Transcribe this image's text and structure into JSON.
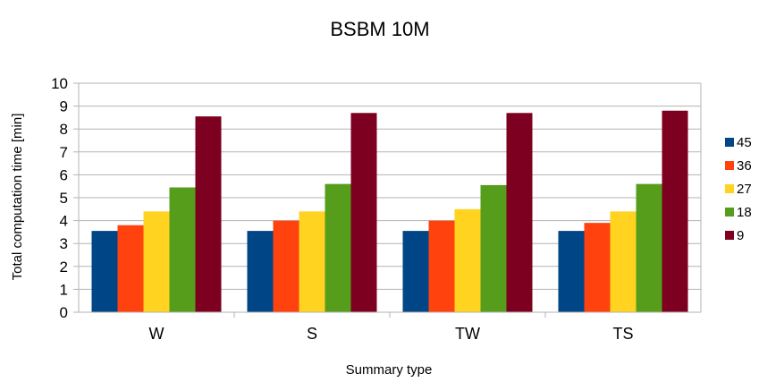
{
  "chart_data": {
    "type": "bar",
    "title": "BSBM 10M",
    "xlabel": "Summary type",
    "ylabel": "Total computation time [min]",
    "ylim": [
      0,
      10
    ],
    "yticks": [
      0,
      1,
      2,
      3,
      4,
      5,
      6,
      7,
      8,
      9,
      10
    ],
    "categories": [
      "W",
      "S",
      "TW",
      "TS"
    ],
    "series": [
      {
        "name": "45",
        "color": "#004586",
        "values": [
          3.55,
          3.55,
          3.55,
          3.55
        ]
      },
      {
        "name": "36",
        "color": "#ff420e",
        "values": [
          3.8,
          4.0,
          4.0,
          3.9
        ]
      },
      {
        "name": "27",
        "color": "#ffd320",
        "values": [
          4.4,
          4.4,
          4.5,
          4.4
        ]
      },
      {
        "name": "18",
        "color": "#579d1c",
        "values": [
          5.45,
          5.6,
          5.55,
          5.6
        ]
      },
      {
        "name": "9",
        "color": "#7e0021",
        "values": [
          8.55,
          8.7,
          8.7,
          8.8
        ]
      }
    ],
    "grid": true,
    "legend_position": "right"
  }
}
